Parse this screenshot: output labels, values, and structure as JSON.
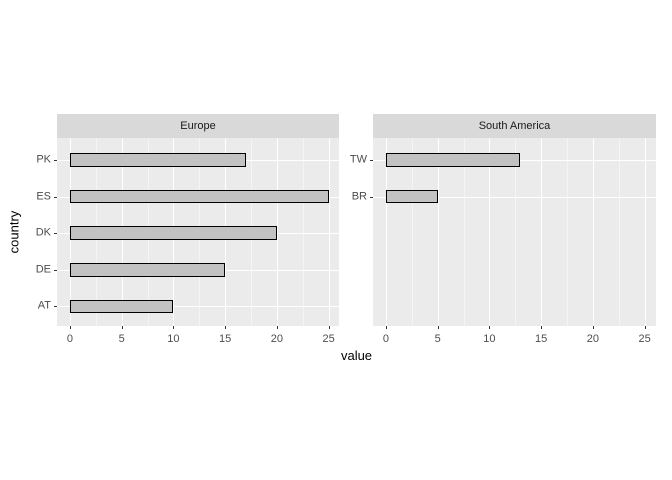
{
  "chart_data": {
    "type": "bar",
    "orientation": "horizontal",
    "title": "",
    "xlabel": "value",
    "ylabel": "country",
    "xlim": [
      0,
      25
    ],
    "x_major_ticks": [
      0,
      5,
      10,
      15,
      20,
      25
    ],
    "x_minor_ticks": [
      2.5,
      7.5,
      12.5,
      17.5,
      22.5
    ],
    "legend": "none",
    "grid": "white major and minor gridlines on grey panel (ggplot style)",
    "facets": [
      {
        "label": "Europe",
        "categories": [
          "PK",
          "ES",
          "DK",
          "DE",
          "AT"
        ],
        "values": [
          17,
          25,
          20,
          15,
          10
        ]
      },
      {
        "label": "South America",
        "categories": [
          "TW",
          "BR"
        ],
        "values": [
          13,
          5
        ]
      }
    ],
    "colors": {
      "strip_background": "#d9d9d9",
      "panel_background": "#ebebeb",
      "bar_fill": "#c2c2c2",
      "bar_border": "#000000",
      "grid_major": "#ffffff",
      "grid_minor": "#f5f5f5",
      "axis_text": "#4d4d4d",
      "strip_text": "#1a1a1a",
      "axis_title": "#000000",
      "tick_mark": "#333333"
    }
  }
}
